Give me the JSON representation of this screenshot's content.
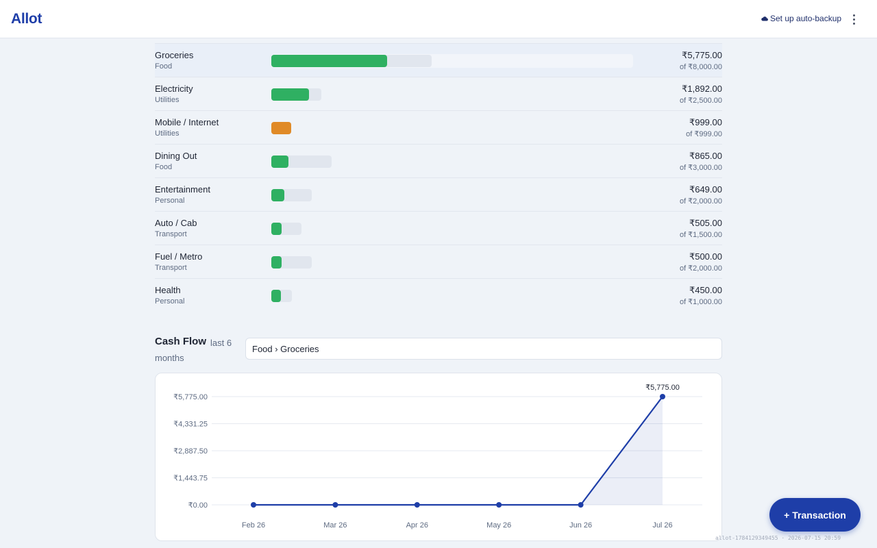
{
  "app": {
    "name": "Allot"
  },
  "header": {
    "backup_label": "Set up auto-backup"
  },
  "colors": {
    "brand": "#1e3ea8",
    "on_track": "#2fb062",
    "at_limit": "#e08a27",
    "track": "#e1e6ee"
  },
  "budgets": [
    {
      "name": "Groceries",
      "category": "Food",
      "spent": "₹5,775.00",
      "of": "of ₹8,000.00",
      "progress": 0.722,
      "status": "on_track"
    },
    {
      "name": "Electricity",
      "category": "Utilities",
      "spent": "₹1,892.00",
      "of": "of ₹2,500.00",
      "progress": 0.757,
      "status": "on_track"
    },
    {
      "name": "Mobile / Internet",
      "category": "Utilities",
      "spent": "₹999.00",
      "of": "of ₹999.00",
      "progress": 1.0,
      "status": "at_limit"
    },
    {
      "name": "Dining Out",
      "category": "Food",
      "spent": "₹865.00",
      "of": "of ₹3,000.00",
      "progress": 0.288,
      "status": "on_track"
    },
    {
      "name": "Entertainment",
      "category": "Personal",
      "spent": "₹649.00",
      "of": "of ₹2,000.00",
      "progress": 0.325,
      "status": "on_track"
    },
    {
      "name": "Auto / Cab",
      "category": "Transport",
      "spent": "₹505.00",
      "of": "of ₹1,500.00",
      "progress": 0.337,
      "status": "on_track"
    },
    {
      "name": "Fuel / Metro",
      "category": "Transport",
      "spent": "₹500.00",
      "of": "of ₹2,000.00",
      "progress": 0.25,
      "status": "on_track"
    },
    {
      "name": "Health",
      "category": "Personal",
      "spent": "₹450.00",
      "of": "of ₹1,000.00",
      "progress": 0.45,
      "status": "on_track"
    }
  ],
  "cashflow": {
    "title": "Cash Flow",
    "subtitle": "last 6 months",
    "selected_category": "Food › Groceries"
  },
  "chart_data": {
    "type": "area",
    "categories": [
      "Feb 26",
      "Mar 26",
      "Apr 26",
      "May 26",
      "Jun 26",
      "Jul 26"
    ],
    "series": [
      {
        "values": [
          0,
          0,
          0,
          0,
          0,
          5775
        ]
      }
    ],
    "y_ticks": [
      "₹0.00",
      "₹1,443.75",
      "₹2,887.50",
      "₹4,331.25",
      "₹5,775.00"
    ],
    "ylim": [
      0,
      5775
    ],
    "data_labels": [
      {
        "index": 5,
        "text": "₹5,775.00"
      }
    ],
    "grid": true,
    "xlabel": "",
    "ylabel": ""
  },
  "fab": {
    "label": "+ Transaction"
  },
  "build_info": "allot-1784129349455 · 2026-07-15 20:59"
}
